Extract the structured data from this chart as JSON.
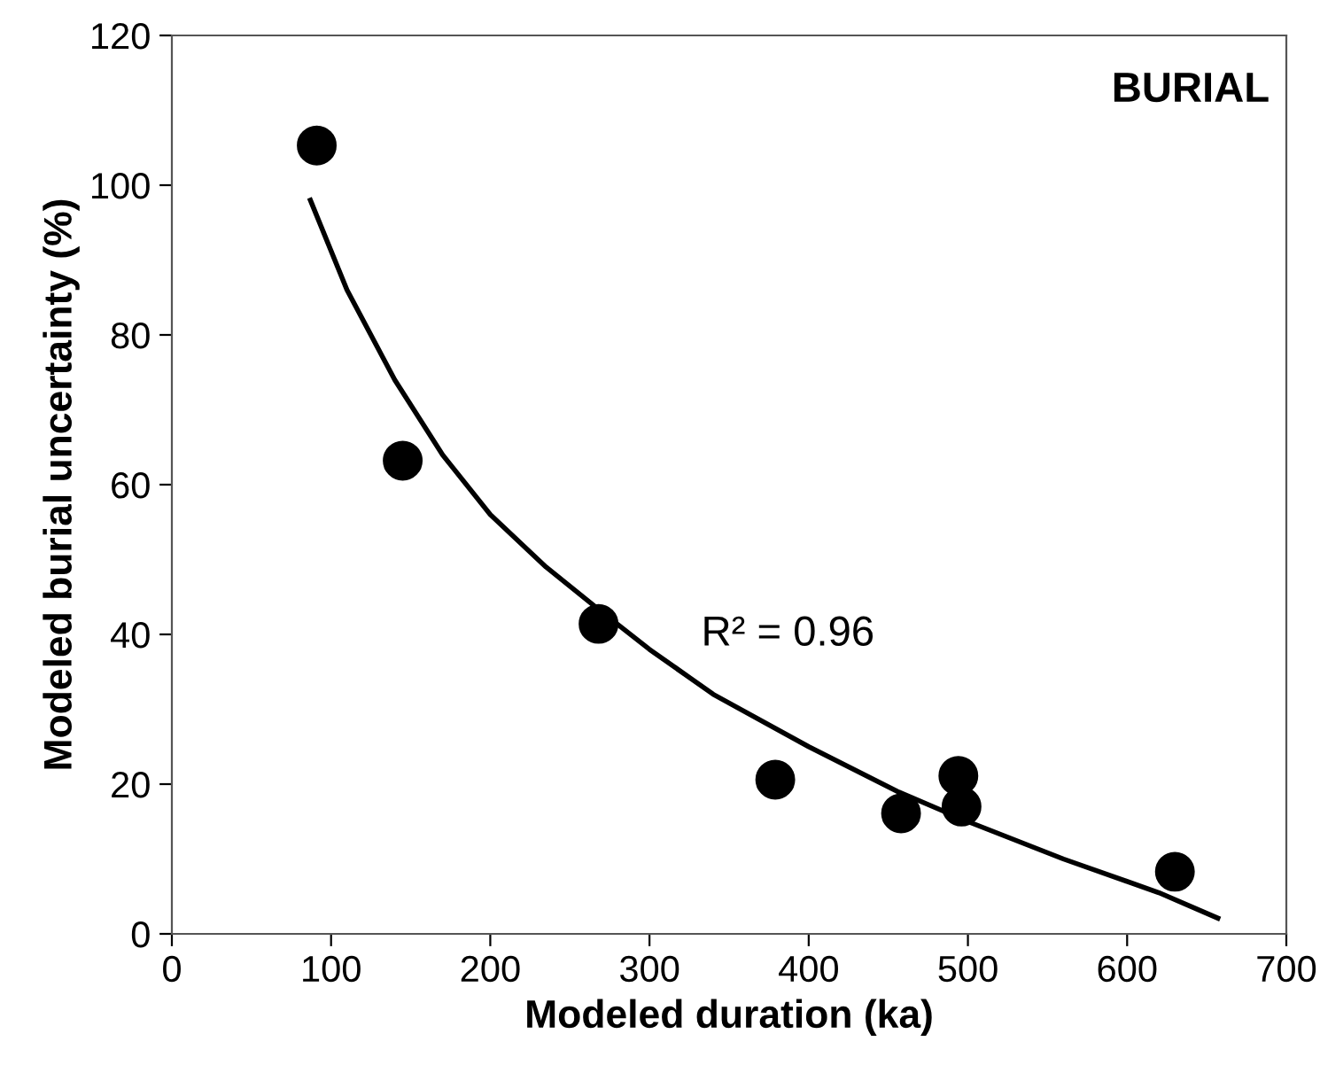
{
  "chart_data": {
    "type": "scatter",
    "xlabel": "Modeled duration (ka)",
    "ylabel": "Modeled burial uncertainty (%)",
    "xlim": [
      0,
      700
    ],
    "xticks": [
      0,
      100,
      200,
      300,
      400,
      500,
      600,
      700
    ],
    "ylim": [
      0,
      120
    ],
    "yticks": [
      0,
      20,
      40,
      60,
      80,
      100,
      120
    ],
    "grid": false,
    "legend": false,
    "marker": "circle",
    "series": [
      {
        "color": "#000000",
        "x": [
          91,
          145,
          268,
          379,
          458,
          494,
          496,
          630
        ],
        "values": [
          105.3,
          63.2,
          41.4,
          20.6,
          16.1,
          21.1,
          17.0,
          8.3
        ]
      },
      {
        "type": "line",
        "color": "#000000",
        "line_style": "solid",
        "marker": "none",
        "x": [
          87,
          110,
          140,
          170,
          200,
          235,
          270,
          300,
          340,
          400,
          456,
          500,
          560,
          620,
          657
        ],
        "values": [
          98,
          86,
          74,
          64,
          56,
          49,
          43,
          38,
          32,
          25,
          19,
          15,
          10,
          5.5,
          2.1
        ]
      }
    ],
    "annotations": [
      "BURIAL",
      "R² = 0.96"
    ]
  }
}
